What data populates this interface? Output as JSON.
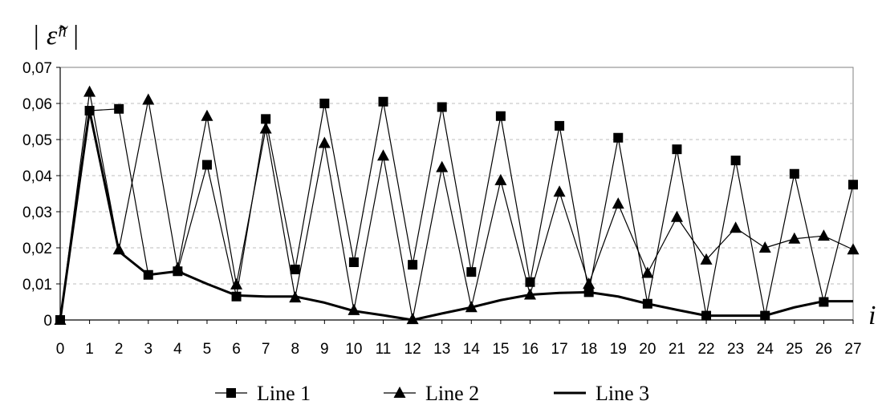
{
  "chart_data": {
    "type": "line",
    "ylabel": "| ε̃ʰ |",
    "xlabel": "i",
    "x": [
      0,
      1,
      2,
      3,
      4,
      5,
      6,
      7,
      8,
      9,
      10,
      11,
      12,
      13,
      14,
      15,
      16,
      17,
      18,
      19,
      20,
      21,
      22,
      23,
      24,
      25,
      26,
      27
    ],
    "x_tick_labels": [
      "0",
      "1",
      "2",
      "3",
      "4",
      "5",
      "6",
      "7",
      "8",
      "9",
      "10",
      "11",
      "12",
      "13",
      "14",
      "15",
      "16",
      "17",
      "18",
      "19",
      "20",
      "21",
      "22",
      "23",
      "24",
      "25",
      "26",
      "27"
    ],
    "y_tick_labels": [
      "0",
      "0,01",
      "0,02",
      "0,03",
      "0,04",
      "0,05",
      "0,06",
      "0,07"
    ],
    "ylim": [
      0,
      0.07
    ],
    "xlim": [
      0,
      27
    ],
    "grid": "horizontal dashed",
    "legend_position": "bottom",
    "series": [
      {
        "name": "Line 1",
        "marker": "square",
        "values": [
          0,
          0.058,
          0.0585,
          0.0125,
          0.0135,
          0.043,
          0.0065,
          0.0557,
          0.014,
          0.06,
          0.016,
          0.0605,
          0.0153,
          0.059,
          0.0133,
          0.0565,
          0.0105,
          0.0538,
          0.0077,
          0.0505,
          0.0045,
          0.0473,
          0.0012,
          0.0442,
          0.0012,
          0.0405,
          0.005,
          0.0375
        ]
      },
      {
        "name": "Line 2",
        "marker": "triangle",
        "values": [
          0,
          0.0632,
          0.0195,
          0.061,
          0.0143,
          0.0565,
          0.0098,
          0.053,
          0.0062,
          0.049,
          0.0027,
          0.0455,
          0.0002,
          0.0423,
          0.0035,
          0.0387,
          0.007,
          0.0355,
          0.01,
          0.0322,
          0.013,
          0.0285,
          0.0167,
          0.0255,
          0.02,
          0.0225,
          0.0233,
          0.0195
        ]
      },
      {
        "name": "Line 3",
        "marker": "none",
        "values": [
          0,
          0.058,
          0.019,
          0.0125,
          0.0135,
          0.01,
          0.0068,
          0.0065,
          0.0065,
          0.0048,
          0.0025,
          0.0013,
          0,
          0.0018,
          0.0035,
          0.0055,
          0.007,
          0.0075,
          0.0077,
          0.0065,
          0.0045,
          0.0028,
          0.0012,
          0.0012,
          0.0012,
          0.0035,
          0.0052,
          0.0052
        ]
      }
    ]
  }
}
